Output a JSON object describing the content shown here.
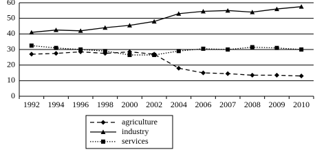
{
  "chart_data": {
    "type": "line",
    "categories": [
      "1992",
      "1994",
      "1996",
      "1998",
      "2000",
      "2002",
      "2004",
      "2006",
      "2007",
      "2008",
      "2009",
      "2010"
    ],
    "series": [
      {
        "name": "agriculture",
        "color": "#000000",
        "dash": "dashed",
        "marker": "diamond",
        "values": [
          27,
          27.5,
          28.5,
          27.5,
          28.5,
          27,
          18,
          15,
          14.5,
          13.5,
          13.5,
          13
        ]
      },
      {
        "name": "industry",
        "color": "#000000",
        "dash": "solid",
        "marker": "triangle",
        "values": [
          41,
          42.5,
          42,
          44,
          45.5,
          48,
          53,
          54.5,
          55,
          54,
          56,
          57.5
        ]
      },
      {
        "name": "services",
        "color": "#000000",
        "dash": "dotted",
        "marker": "square",
        "values": [
          32.5,
          31,
          30,
          29,
          26.5,
          26.5,
          29,
          30.5,
          30,
          31.5,
          31,
          30
        ]
      }
    ],
    "ylim": [
      0,
      60
    ],
    "yticks": [
      0,
      10,
      20,
      30,
      40,
      50,
      60
    ],
    "grid": true,
    "legend": "bottom"
  }
}
